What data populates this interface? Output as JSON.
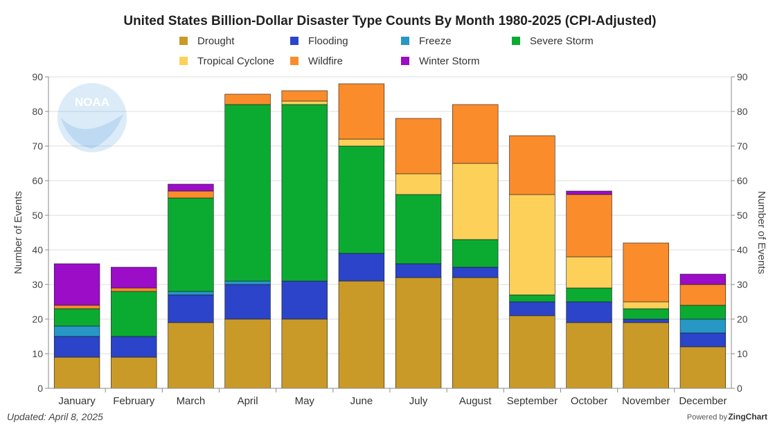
{
  "chart_data": {
    "type": "bar",
    "stacked": true,
    "title": "United States Billion-Dollar Disaster Type Counts By Month 1980-2025 (CPI-Adjusted)",
    "ylabel_left": "Number of Events",
    "ylabel_right": "Number of Events",
    "xlabel": "",
    "ylim": [
      0,
      90
    ],
    "yticks": [
      0,
      10,
      20,
      30,
      40,
      50,
      60,
      70,
      80,
      90
    ],
    "grid": true,
    "legend_position": "top-center",
    "categories": [
      "January",
      "February",
      "March",
      "April",
      "May",
      "June",
      "July",
      "August",
      "September",
      "October",
      "November",
      "December"
    ],
    "series": [
      {
        "name": "Drought",
        "color": "#c99a27",
        "values": [
          9,
          9,
          19,
          20,
          20,
          31,
          32,
          32,
          21,
          19,
          19,
          12
        ]
      },
      {
        "name": "Flooding",
        "color": "#2b44c9",
        "values": [
          6,
          6,
          8,
          10,
          11,
          8,
          4,
          3,
          4,
          6,
          1,
          4
        ]
      },
      {
        "name": "Freeze",
        "color": "#2797c6",
        "values": [
          3,
          0,
          1,
          1,
          0,
          0,
          0,
          0,
          0,
          0,
          0,
          4
        ]
      },
      {
        "name": "Severe Storm",
        "color": "#0bab32",
        "values": [
          5,
          13,
          27,
          51,
          51,
          31,
          20,
          8,
          2,
          4,
          3,
          4
        ]
      },
      {
        "name": "Tropical Cyclone",
        "color": "#fdd05a",
        "values": [
          0,
          0,
          0,
          0,
          1,
          2,
          6,
          22,
          29,
          9,
          2,
          0
        ]
      },
      {
        "name": "Wildfire",
        "color": "#fb8c2c",
        "values": [
          1,
          1,
          2,
          3,
          3,
          16,
          16,
          17,
          17,
          18,
          17,
          6
        ]
      },
      {
        "name": "Winter Storm",
        "color": "#9b0dc7",
        "values": [
          12,
          6,
          2,
          0,
          0,
          0,
          0,
          0,
          0,
          1,
          0,
          3
        ]
      }
    ]
  },
  "footer": {
    "updated": "Updated: April 8, 2025",
    "powered_prefix": "Powered by",
    "powered_brand": "ZingChart"
  },
  "logo": {
    "text": "NOAA",
    "color": "#3a8fd6"
  }
}
